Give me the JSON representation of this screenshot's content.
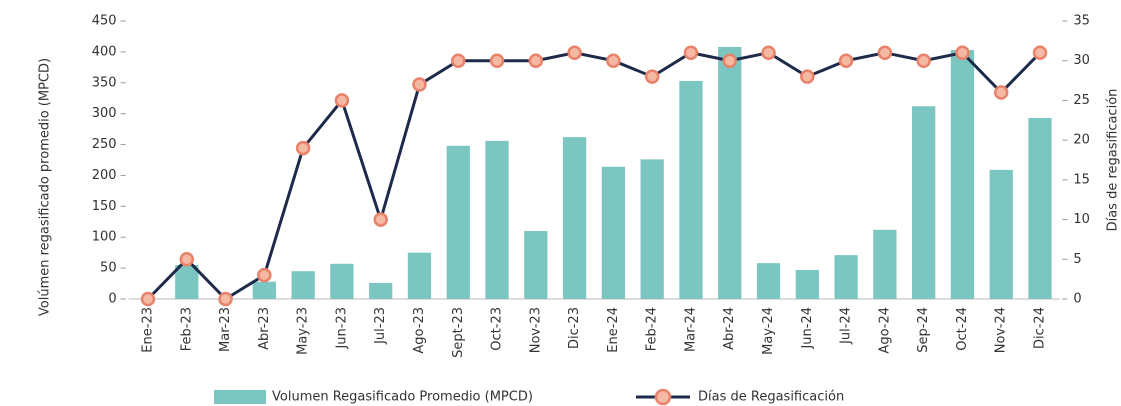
{
  "chart_data": {
    "type": "bar_line",
    "y_label": "Volúmen regasificado promedio (MPCD)",
    "y2_label": "Días de regasificación",
    "categories": [
      "Ene-23",
      "Feb-23",
      "Mar-23",
      "Abr-23",
      "May-23",
      "Jun-23",
      "Jul-23",
      "Ago-23",
      "Sept-23",
      "Oct-23",
      "Nov-23",
      "Dic-23",
      "Ene-24",
      "Feb-24",
      "Mar-24",
      "Abr-24",
      "May-24",
      "Jun-24",
      "Jul-24",
      "Ago-24",
      "Sep-24",
      "Oct-24",
      "Nov-24",
      "Dic-24"
    ],
    "series": [
      {
        "name": "Volumen Regasificado Promedio (MPCD)",
        "type": "bar",
        "color": "#7bc6c1",
        "axis": "y",
        "values": [
          0,
          55,
          0,
          28,
          45,
          57,
          26,
          75,
          248,
          256,
          110,
          262,
          214,
          226,
          353,
          408,
          58,
          47,
          71,
          112,
          312,
          403,
          209,
          293
        ]
      },
      {
        "name": "Días de Regasificación",
        "type": "line",
        "color": "#1e2a4a",
        "marker_color": "#f5b8a3",
        "marker_edge": "#e8826a",
        "axis": "y2",
        "values": [
          0,
          5,
          0,
          3,
          19,
          25,
          10,
          27,
          30,
          30,
          30,
          31,
          30,
          28,
          31,
          30,
          31,
          28,
          30,
          31,
          30,
          31,
          26,
          31
        ]
      }
    ],
    "ylim": [
      0,
      450
    ],
    "yticks": [
      0,
      50,
      100,
      150,
      200,
      250,
      300,
      350,
      400,
      450
    ],
    "y2lim": [
      0,
      35
    ],
    "y2ticks": [
      0,
      5,
      10,
      15,
      20,
      25,
      30,
      35
    ]
  }
}
